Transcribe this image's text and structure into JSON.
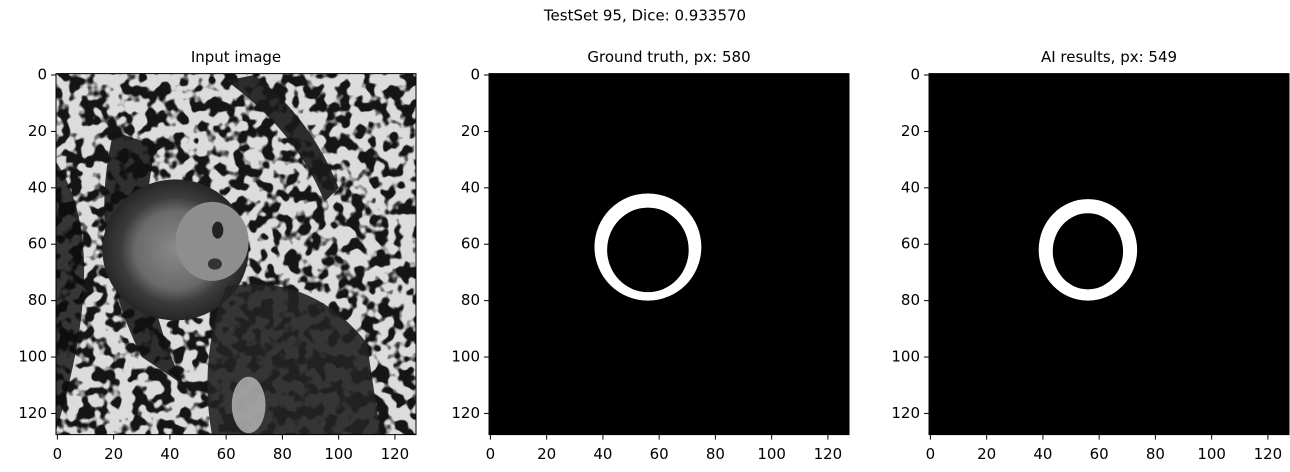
{
  "title": "TestSet 95, Dice: 0.933570",
  "chart_data": [
    {
      "type": "image",
      "title": "Input image",
      "xlim": [
        -0.5,
        127.5
      ],
      "ylim": [
        127.5,
        -0.5
      ],
      "xticks": [
        0,
        20,
        40,
        60,
        80,
        100,
        120
      ],
      "yticks": [
        0,
        20,
        40,
        60,
        80,
        100,
        120
      ]
    },
    {
      "type": "image",
      "title": "Ground truth, px: 580",
      "xlim": [
        -0.5,
        127.5
      ],
      "ylim": [
        127.5,
        -0.5
      ],
      "xticks": [
        0,
        20,
        40,
        60,
        80,
        100,
        120
      ],
      "yticks": [
        0,
        20,
        40,
        60,
        80,
        100,
        120
      ]
    },
    {
      "type": "image",
      "title": "AI results, px: 549",
      "xlim": [
        -0.5,
        127.5
      ],
      "ylim": [
        127.5,
        -0.5
      ],
      "xticks": [
        0,
        20,
        40,
        60,
        80,
        100,
        120
      ],
      "yticks": [
        0,
        20,
        40,
        60,
        80,
        100,
        120
      ]
    }
  ]
}
